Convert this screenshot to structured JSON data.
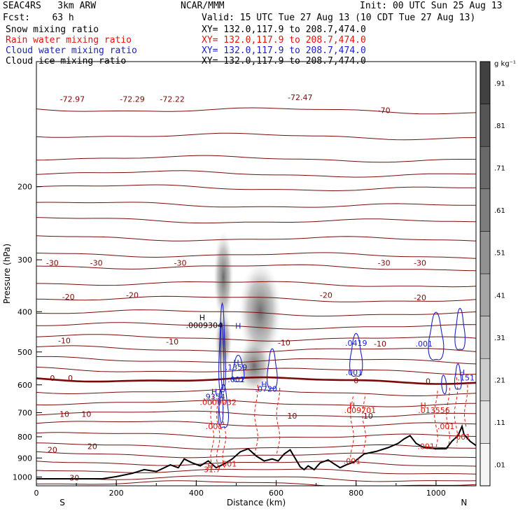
{
  "header": {
    "model": "SEAC4RS   3km ARW",
    "org": "NCAR/MMM",
    "init": "Init: 00 UTC Sun 25 Aug 13",
    "fcst": "Fcst:    63 h",
    "valid": "Valid: 15 UTC Tue 27 Aug 13 (10 CDT Tue 27 Aug 13)",
    "fields": [
      {
        "label": "Snow mixing ratio",
        "xy": "XY= 132.0,117.9 to 208.7,474.0",
        "color": "#000000"
      },
      {
        "label": "Rain water mixing ratio",
        "xy": "XY= 132.0,117.9 to 208.7,474.0",
        "color": "#e0140c"
      },
      {
        "label": "Cloud water mixing ratio",
        "xy": "XY= 132.0,117.9 to 208.7,474.0",
        "color": "#1c22c4"
      },
      {
        "label": "Cloud ice mixing ratio",
        "xy": "XY= 132.0,117.9 to 208.7,474.0",
        "color": "#000000"
      }
    ]
  },
  "colors": {
    "temperature": "#7a0a0a",
    "rain": "#e0140c",
    "cloud": "#1c22c4",
    "snow": "#000000",
    "terrain": "#000000"
  },
  "chart_data": {
    "type": "cross-section",
    "xlabel": "Distance (km)",
    "ylabel": "Pressure (hPa)",
    "xlim": [
      0,
      1100
    ],
    "ylim": [
      1050,
      100
    ],
    "y_scale": "log",
    "x_ticks": [
      0,
      200,
      400,
      600,
      800,
      1000
    ],
    "y_ticks": [
      200,
      300,
      400,
      500,
      600,
      700,
      800,
      900,
      1000
    ],
    "endpoint_labels": {
      "left": "S",
      "right": "N"
    },
    "colorbar": {
      "unit": "g kg⁻¹",
      "levels": [
        0.01,
        0.11,
        0.21,
        0.31,
        0.41,
        0.51,
        0.61,
        0.71,
        0.81,
        0.91
      ],
      "labels": [
        ".01",
        ".11",
        ".21",
        ".31",
        ".41",
        ".51",
        ".61",
        ".71",
        ".81",
        ".91"
      ]
    },
    "temperature_levels": [
      -72.97,
      -72.29,
      -72.22,
      -72.47,
      -70,
      -30,
      -20,
      -10,
      0,
      10,
      20,
      30
    ],
    "temperature_labels": [
      {
        "text": "-72.97",
        "x": 90,
        "p": 123
      },
      {
        "text": "-72.29",
        "x": 240,
        "p": 123
      },
      {
        "text": "-72.22",
        "x": 340,
        "p": 123
      },
      {
        "text": "-72.47",
        "x": 660,
        "p": 122
      },
      {
        "text": "-70",
        "x": 870,
        "p": 131
      },
      {
        "text": "-30",
        "x": 40,
        "p": 305
      },
      {
        "text": "-30",
        "x": 150,
        "p": 305
      },
      {
        "text": "-30",
        "x": 360,
        "p": 305
      },
      {
        "text": "-30",
        "x": 870,
        "p": 305
      },
      {
        "text": "-30",
        "x": 960,
        "p": 305
      },
      {
        "text": "-20",
        "x": 80,
        "p": 368
      },
      {
        "text": "-20",
        "x": 240,
        "p": 365
      },
      {
        "text": "-20",
        "x": 725,
        "p": 365
      },
      {
        "text": "-20",
        "x": 960,
        "p": 370
      },
      {
        "text": "-10",
        "x": 70,
        "p": 469
      },
      {
        "text": "-10",
        "x": 340,
        "p": 472
      },
      {
        "text": "-10",
        "x": 620,
        "p": 475
      },
      {
        "text": "-10",
        "x": 860,
        "p": 478
      },
      {
        "text": "0",
        "x": 40,
        "p": 578
      },
      {
        "text": "0",
        "x": 85,
        "p": 578
      },
      {
        "text": "0",
        "x": 800,
        "p": 586
      },
      {
        "text": "0",
        "x": 980,
        "p": 588
      },
      {
        "text": "10",
        "x": 70,
        "p": 705
      },
      {
        "text": "10",
        "x": 125,
        "p": 705
      },
      {
        "text": "10",
        "x": 640,
        "p": 712
      },
      {
        "text": "10",
        "x": 830,
        "p": 712
      },
      {
        "text": "20",
        "x": 40,
        "p": 860
      },
      {
        "text": "20",
        "x": 140,
        "p": 843
      },
      {
        "text": "30",
        "x": 95,
        "p": 1005
      }
    ],
    "maxima_labels": [
      {
        "text": "H",
        "x": 415,
        "p": 413,
        "color": "#000000"
      },
      {
        "text": ".0009304",
        "x": 420,
        "p": 431,
        "color": "#000000"
      },
      {
        "text": "H",
        "x": 505,
        "p": 433,
        "color": "#1c22c4"
      },
      {
        "text": ".0419",
        "x": 800,
        "p": 476,
        "color": "#1c22c4"
      },
      {
        "text": ".001",
        "x": 970,
        "p": 478,
        "color": "#1c22c4"
      },
      {
        "text": "H",
        "x": 500,
        "p": 530,
        "color": "#1c22c4"
      },
      {
        "text": ".1359",
        "x": 500,
        "p": 544,
        "color": "#1c22c4"
      },
      {
        "text": ".001",
        "x": 500,
        "p": 582,
        "color": "#1c22c4"
      },
      {
        "text": "H",
        "x": 570,
        "p": 598,
        "color": "#1c22c4"
      },
      {
        "text": ".0720",
        "x": 575,
        "p": 614,
        "color": "#1c22c4"
      },
      {
        "text": ".001",
        "x": 795,
        "p": 560,
        "color": "#1c22c4"
      },
      {
        "text": "H",
        "x": 1065,
        "p": 560,
        "color": "#1c22c4"
      },
      {
        "text": ".151",
        "x": 1075,
        "p": 577,
        "color": "#1c22c4"
      },
      {
        "text": "H",
        "x": 445,
        "p": 623,
        "color": "#1c22c4"
      },
      {
        "text": ".9354",
        "x": 445,
        "p": 640,
        "color": "#1c22c4"
      },
      {
        "text": ".0009032",
        "x": 455,
        "p": 661,
        "color": "#e0140c"
      },
      {
        "text": "H",
        "x": 790,
        "p": 672,
        "color": "#e0140c"
      },
      {
        "text": ".009701",
        "x": 810,
        "p": 690,
        "color": "#e0140c"
      },
      {
        "text": "H",
        "x": 968,
        "p": 672,
        "color": "#e0140c"
      },
      {
        "text": ".013556",
        "x": 995,
        "p": 690,
        "color": "#e0140c"
      },
      {
        "text": ".001",
        "x": 445,
        "p": 755,
        "color": "#e0140c"
      },
      {
        "text": ".001",
        "x": 1025,
        "p": 755,
        "color": "#e0140c"
      },
      {
        "text": ".001",
        "x": 1065,
        "p": 800,
        "color": "#e0140c"
      },
      {
        "text": ".001",
        "x": 975,
        "p": 843,
        "color": "#e0140c"
      },
      {
        "text": ".001",
        "x": 790,
        "p": 915,
        "color": "#e0140c"
      },
      {
        "text": ".001",
        "x": 480,
        "p": 930,
        "color": "#e0140c"
      },
      {
        "text": "H",
        "x": 435,
        "p": 940,
        "color": "#e0140c"
      },
      {
        "text": "31.7",
        "x": 440,
        "p": 958,
        "color": "#e0140c"
      }
    ],
    "terrain": [
      [
        0,
        1010
      ],
      [
        80,
        1010
      ],
      [
        165,
        1010
      ],
      [
        200,
        998
      ],
      [
        240,
        980
      ],
      [
        270,
        960
      ],
      [
        300,
        970
      ],
      [
        335,
        935
      ],
      [
        355,
        950
      ],
      [
        370,
        905
      ],
      [
        390,
        925
      ],
      [
        410,
        940
      ],
      [
        430,
        915
      ],
      [
        450,
        950
      ],
      [
        470,
        930
      ],
      [
        490,
        905
      ],
      [
        510,
        870
      ],
      [
        530,
        855
      ],
      [
        550,
        890
      ],
      [
        570,
        915
      ],
      [
        590,
        905
      ],
      [
        605,
        915
      ],
      [
        620,
        880
      ],
      [
        635,
        860
      ],
      [
        650,
        910
      ],
      [
        660,
        945
      ],
      [
        670,
        960
      ],
      [
        680,
        940
      ],
      [
        695,
        960
      ],
      [
        710,
        925
      ],
      [
        730,
        910
      ],
      [
        745,
        930
      ],
      [
        760,
        950
      ],
      [
        775,
        935
      ],
      [
        795,
        920
      ],
      [
        820,
        880
      ],
      [
        850,
        868
      ],
      [
        880,
        850
      ],
      [
        905,
        830
      ],
      [
        920,
        810
      ],
      [
        935,
        795
      ],
      [
        950,
        830
      ],
      [
        970,
        850
      ],
      [
        1000,
        855
      ],
      [
        1025,
        855
      ],
      [
        1040,
        820
      ],
      [
        1055,
        795
      ],
      [
        1065,
        755
      ],
      [
        1070,
        790
      ],
      [
        1085,
        820
      ],
      [
        1100,
        840
      ]
    ]
  }
}
